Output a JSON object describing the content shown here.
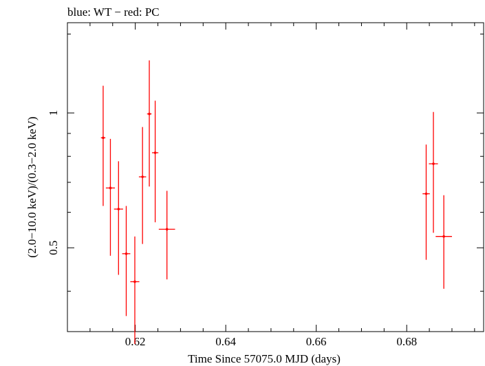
{
  "chart_data": {
    "type": "scatter",
    "title": "blue: WT − red: PC",
    "xlabel": "Time Since 57075.0 MJD (days)",
    "ylabel": "(2.0−10.0 keV)/(0.3−2.0 keV)",
    "xlim": [
      0.605,
      0.697
    ],
    "ylim": [
      0.325,
      1.59
    ],
    "y_scale": "log",
    "x_ticks": [
      {
        "value": 0.62,
        "label": "0.62"
      },
      {
        "value": 0.64,
        "label": "0.64"
      },
      {
        "value": 0.66,
        "label": "0.66"
      },
      {
        "value": 0.68,
        "label": "0.68"
      }
    ],
    "y_ticks": [
      {
        "value": 0.5,
        "label": "0.5"
      },
      {
        "value": 1.0,
        "label": "1"
      }
    ],
    "grid": false,
    "series": [
      {
        "color": "#ff0000",
        "points": [
          {
            "x": 0.6129,
            "xerr": 0.0005,
            "y": 0.88,
            "ylo": 0.62,
            "yhi": 1.15
          },
          {
            "x": 0.6145,
            "xerr": 0.001,
            "y": 0.68,
            "ylo": 0.48,
            "yhi": 0.875
          },
          {
            "x": 0.6163,
            "xerr": 0.001,
            "y": 0.61,
            "ylo": 0.435,
            "yhi": 0.78
          },
          {
            "x": 0.618,
            "xerr": 0.0009,
            "y": 0.485,
            "ylo": 0.352,
            "yhi": 0.62
          },
          {
            "x": 0.6199,
            "xerr": 0.001,
            "y": 0.42,
            "ylo": 0.305,
            "yhi": 0.53
          },
          {
            "x": 0.6216,
            "xerr": 0.0008,
            "y": 0.72,
            "ylo": 0.51,
            "yhi": 0.93
          },
          {
            "x": 0.6231,
            "xerr": 0.0005,
            "y": 0.995,
            "ylo": 0.685,
            "yhi": 1.31
          },
          {
            "x": 0.6244,
            "xerr": 0.0007,
            "y": 0.815,
            "ylo": 0.57,
            "yhi": 1.065
          },
          {
            "x": 0.627,
            "xerr": 0.0018,
            "y": 0.55,
            "ylo": 0.425,
            "yhi": 0.67
          },
          {
            "x": 0.6843,
            "xerr": 0.0008,
            "y": 0.66,
            "ylo": 0.47,
            "yhi": 0.85
          },
          {
            "x": 0.6859,
            "xerr": 0.001,
            "y": 0.77,
            "ylo": 0.54,
            "yhi": 1.005
          },
          {
            "x": 0.6882,
            "xerr": 0.0018,
            "y": 0.53,
            "ylo": 0.405,
            "yhi": 0.655
          }
        ]
      }
    ]
  }
}
